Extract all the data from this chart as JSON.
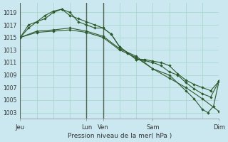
{
  "background_color": "#cbe8f0",
  "grid_color": "#a8d8cc",
  "line_color": "#2d5a2d",
  "vline_color": "#556655",
  "title": "Pression niveau de la mer( hPa )",
  "ylim": [
    1002,
    1020.5
  ],
  "xlim": [
    0,
    288
  ],
  "yticks": [
    1003,
    1005,
    1007,
    1009,
    1011,
    1013,
    1015,
    1017,
    1019
  ],
  "xtick_positions": [
    0,
    96,
    120,
    192,
    288
  ],
  "xtick_labels": [
    "Jeu",
    "Lun",
    "Ven",
    "Sam",
    "Dim"
  ],
  "vline_positions": [
    96,
    120
  ],
  "series": [
    {
      "x": [
        0,
        12,
        24,
        36,
        48,
        60,
        72,
        84,
        96,
        108,
        120,
        132,
        144,
        156,
        168,
        180,
        192,
        204,
        216,
        228,
        240,
        252,
        264,
        276,
        288
      ],
      "y": [
        1015.0,
        1016.5,
        1017.5,
        1018.0,
        1019.0,
        1019.5,
        1019.0,
        1017.5,
        1017.0,
        1016.5,
        1016.5,
        1015.5,
        1013.5,
        1012.5,
        1011.5,
        1011.5,
        1011.2,
        1011.0,
        1010.5,
        1009.2,
        1008.2,
        1007.5,
        1007.0,
        1006.5,
        1008.0
      ]
    },
    {
      "x": [
        0,
        12,
        24,
        36,
        48,
        60,
        72,
        84,
        96,
        108,
        120,
        132,
        144,
        156,
        168,
        180,
        192,
        204,
        216,
        228,
        240,
        252,
        264,
        276,
        288
      ],
      "y": [
        1015.0,
        1017.0,
        1017.5,
        1018.5,
        1019.2,
        1019.5,
        1018.5,
        1018.0,
        1017.5,
        1017.0,
        1016.5,
        1015.5,
        1013.5,
        1012.5,
        1011.5,
        1011.3,
        1011.0,
        1010.5,
        1009.5,
        1009.0,
        1007.8,
        1006.8,
        1006.0,
        1005.5,
        1008.0
      ]
    },
    {
      "x": [
        0,
        24,
        48,
        72,
        96,
        120,
        144,
        168,
        192,
        216,
        240,
        264,
        288
      ],
      "y": [
        1015.0,
        1016.0,
        1016.2,
        1016.5,
        1016.0,
        1015.2,
        1013.2,
        1012.0,
        1010.0,
        1008.5,
        1007.0,
        1005.2,
        1003.2
      ]
    },
    {
      "x": [
        0,
        24,
        48,
        72,
        96,
        120,
        144,
        168,
        192,
        216,
        240,
        252,
        264,
        272,
        280,
        288
      ],
      "y": [
        1015.0,
        1015.8,
        1016.0,
        1016.2,
        1015.8,
        1015.0,
        1013.0,
        1011.8,
        1010.0,
        1009.0,
        1006.5,
        1005.2,
        1003.5,
        1003.0,
        1004.0,
        1008.0
      ]
    }
  ]
}
